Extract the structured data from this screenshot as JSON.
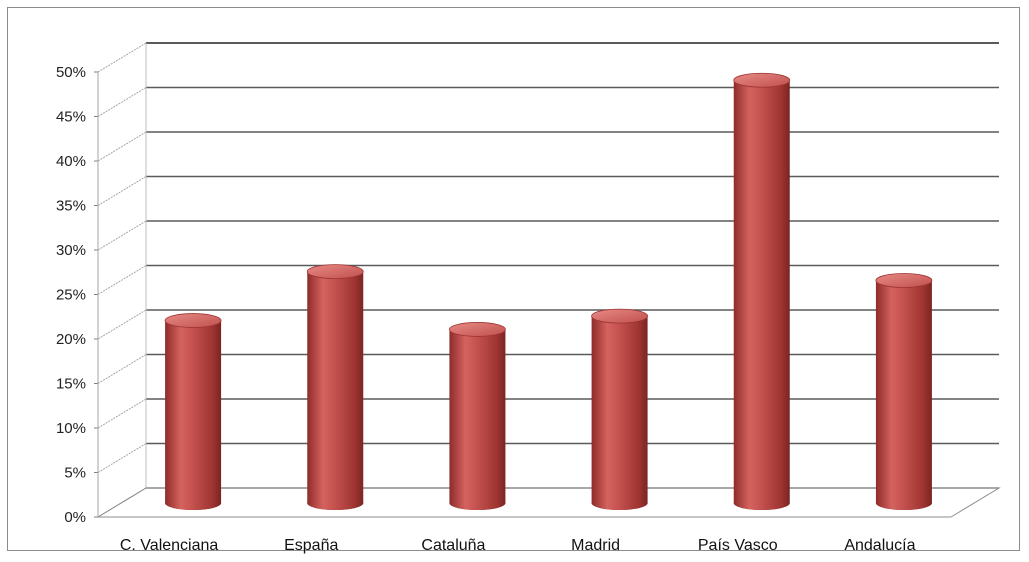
{
  "chart_data": {
    "type": "bar",
    "style": "3d-cylinder",
    "categories": [
      "C. Valenciana",
      "España",
      "Cataluña",
      "Madrid",
      "País Vasco",
      "Andalucía"
    ],
    "values": [
      20.5,
      26,
      19.5,
      21,
      47.5,
      25
    ],
    "y_unit": "%",
    "ylim": [
      0,
      50
    ],
    "yticks": [
      "0%",
      "5%",
      "10%",
      "15%",
      "20%",
      "25%",
      "30%",
      "35%",
      "40%",
      "45%",
      "50%"
    ],
    "title": "",
    "xlabel": "",
    "ylabel": "",
    "grid": true,
    "legend": "none",
    "colors": {
      "bar": "#c0504d",
      "bar_light": "#e07a76",
      "bar_dark": "#7a2523",
      "grid": "#5a5a5a",
      "wall": "#bfbfbf"
    }
  }
}
